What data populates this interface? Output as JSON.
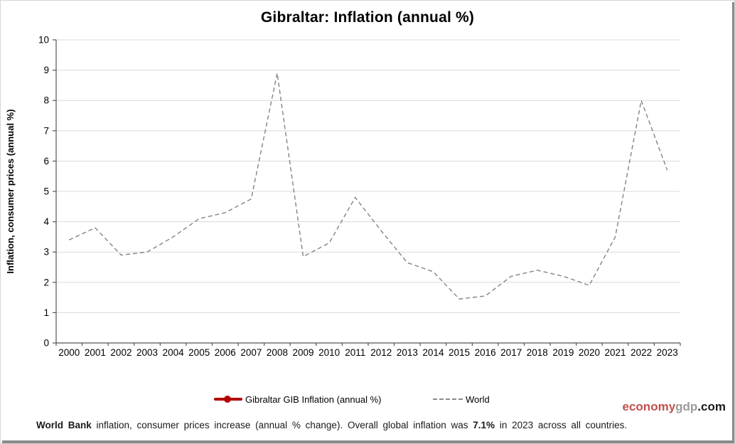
{
  "window_title": "Gibraltar: Inflation (annual %)",
  "colors": {
    "accent_red": "#b40000",
    "world_line": "#838383",
    "grid": "#d9d9d9",
    "axis": "#555555",
    "brand_red": "#c0504d",
    "brand_grey": "#9b9b9b",
    "brand_black": "#1a1a1a",
    "frame_grey": "#8a8a8a"
  },
  "chart_data": {
    "type": "line",
    "title": "Gibraltar: Inflation (annual %)",
    "xlabel": "",
    "ylabel": "Inflation, consumer prices (annual %)",
    "ylim": [
      0,
      10
    ],
    "ytick_step": 1,
    "grid": true,
    "legend_position": "bottom",
    "categories": [
      "2000",
      "2001",
      "2002",
      "2003",
      "2004",
      "2005",
      "2006",
      "2007",
      "2008",
      "2009",
      "2010",
      "2011",
      "2012",
      "2013",
      "2014",
      "2015",
      "2016",
      "2017",
      "2018",
      "2019",
      "2020",
      "2021",
      "2022",
      "2023"
    ],
    "series": [
      {
        "name": "Gibraltar GIB Inflation  (annual %)",
        "style": "solid-circle-marker",
        "color": "#b40000",
        "values": []
      },
      {
        "name": "World",
        "style": "dashed",
        "color": "#838383",
        "values": [
          3.4,
          3.8,
          2.9,
          3.0,
          3.5,
          4.1,
          4.3,
          4.75,
          8.9,
          2.85,
          3.3,
          4.8,
          3.7,
          2.65,
          2.35,
          1.45,
          1.55,
          2.2,
          2.4,
          2.2,
          1.9,
          3.5,
          8.0,
          5.7
        ]
      }
    ]
  },
  "branding": {
    "economy": "economy",
    "gdp": "gdp",
    "com": ".com"
  },
  "footer": {
    "source_bold": "World Bank",
    "text_mid": " inflation, consumer prices increase (annual % change).   Overall global inflation was ",
    "value_bold": "7.1%",
    "text_end": " in 2023 across all countries."
  }
}
